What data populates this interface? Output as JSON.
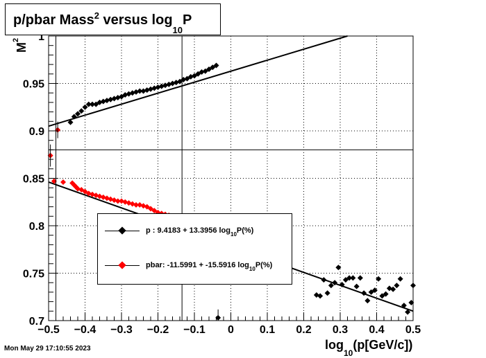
{
  "title": {
    "main": "p/pbar Mass",
    "sup": "2",
    "rest": " versus log",
    "sub": "10",
    "tail": "P"
  },
  "timestamp": "Mon May 29 17:10:55 2023",
  "colors": {
    "p": "#000000",
    "pbar": "#ff0000",
    "grid": "#000000",
    "background": "#ffffff"
  },
  "chart_data": {
    "type": "scatter",
    "xlabel": {
      "pre": "log",
      "sub": "10",
      "post": "(p[GeV/c])"
    },
    "ylabel": {
      "pre": "M",
      "sup": "2"
    },
    "xlim": [
      -0.5,
      0.5
    ],
    "ylim": [
      0.7,
      1.0
    ],
    "grid": true,
    "x_ticks": [
      "−0.5",
      "−0.4",
      "−0.3",
      "−0.2",
      "−0.1",
      "0",
      "0.1",
      "0.2",
      "0.3",
      "0.4",
      "0.5"
    ],
    "y_ticks": [
      "0.7",
      "0.75",
      "0.8",
      "0.85",
      "0.9",
      "0.95",
      "1"
    ],
    "y_tick_values": [
      0.7,
      0.75,
      0.8,
      0.85,
      0.9,
      0.95,
      1.0
    ],
    "x_tick_values": [
      -0.5,
      -0.4,
      -0.3,
      -0.2,
      -0.1,
      0,
      0.1,
      0.2,
      0.3,
      0.4,
      0.5
    ],
    "reference_lines": {
      "vertical_x": [
        -0.48,
        -0.134
      ],
      "horizontal_y": [
        0.88
      ]
    },
    "legend_placement": "center-left",
    "series": [
      {
        "name": "p",
        "legend_name": "p   ",
        "fit_label_pre": ": 9.4183 + 13.3956 log",
        "fit_label_sub": "10",
        "fit_label_post": "P(%)",
        "color": "#000000",
        "marker": "diamond",
        "fit": {
          "x": [
            -0.5,
            0.32
          ],
          "y": [
            0.905,
            1.0
          ]
        },
        "points": [
          [
            -0.44,
            0.909
          ],
          [
            -0.43,
            0.915
          ],
          [
            -0.42,
            0.918
          ],
          [
            -0.41,
            0.921
          ],
          [
            -0.4,
            0.925
          ],
          [
            -0.39,
            0.928
          ],
          [
            -0.38,
            0.928
          ],
          [
            -0.37,
            0.928
          ],
          [
            -0.36,
            0.93
          ],
          [
            -0.35,
            0.931
          ],
          [
            -0.34,
            0.932
          ],
          [
            -0.33,
            0.933
          ],
          [
            -0.32,
            0.934
          ],
          [
            -0.31,
            0.935
          ],
          [
            -0.3,
            0.936
          ],
          [
            -0.29,
            0.938
          ],
          [
            -0.28,
            0.939
          ],
          [
            -0.27,
            0.94
          ],
          [
            -0.26,
            0.941
          ],
          [
            -0.25,
            0.942
          ],
          [
            -0.24,
            0.942
          ],
          [
            -0.23,
            0.943
          ],
          [
            -0.22,
            0.944
          ],
          [
            -0.21,
            0.945
          ],
          [
            -0.2,
            0.946
          ],
          [
            -0.19,
            0.947
          ],
          [
            -0.18,
            0.948
          ],
          [
            -0.17,
            0.949
          ],
          [
            -0.16,
            0.95
          ],
          [
            -0.15,
            0.951
          ],
          [
            -0.14,
            0.952
          ],
          [
            -0.13,
            0.954
          ],
          [
            -0.12,
            0.955
          ],
          [
            -0.11,
            0.957
          ],
          [
            -0.1,
            0.958
          ],
          [
            -0.09,
            0.96
          ],
          [
            -0.08,
            0.962
          ],
          [
            -0.07,
            0.963
          ],
          [
            -0.06,
            0.965
          ],
          [
            -0.05,
            0.967
          ],
          [
            -0.04,
            0.969
          ],
          [
            -0.035,
            0.703
          ],
          [
            0.235,
            0.727
          ],
          [
            0.245,
            0.726
          ],
          [
            0.255,
            0.743
          ],
          [
            0.265,
            0.729
          ],
          [
            0.275,
            0.737
          ],
          [
            0.285,
            0.74
          ],
          [
            0.295,
            0.756
          ],
          [
            0.305,
            0.738
          ],
          [
            0.315,
            0.743
          ],
          [
            0.325,
            0.745
          ],
          [
            0.335,
            0.745
          ],
          [
            0.345,
            0.736
          ],
          [
            0.355,
            0.745
          ],
          [
            0.365,
            0.729
          ],
          [
            0.375,
            0.721
          ],
          [
            0.385,
            0.73
          ],
          [
            0.395,
            0.732
          ],
          [
            0.405,
            0.744
          ],
          [
            0.415,
            0.726
          ],
          [
            0.425,
            0.728
          ],
          [
            0.435,
            0.734
          ],
          [
            0.445,
            0.733
          ],
          [
            0.455,
            0.737
          ],
          [
            0.465,
            0.744
          ],
          [
            0.475,
            0.716
          ],
          [
            0.485,
            0.709
          ],
          [
            0.495,
            0.719
          ],
          [
            0.5,
            0.737
          ]
        ]
      },
      {
        "name": "pbar",
        "legend_name": "pbar",
        "fit_label_pre": ": -11.5991 + -15.5916 log",
        "fit_label_sub": "10",
        "fit_label_post": "P(%)",
        "color": "#ff0000",
        "marker": "diamond",
        "fit": {
          "x": [
            -0.5,
            0.5
          ],
          "y": [
            0.846,
            0.71
          ]
        },
        "points": [
          [
            -0.495,
            0.874
          ],
          [
            -0.475,
            0.901
          ],
          [
            -0.485,
            0.847
          ],
          [
            -0.46,
            0.846
          ],
          [
            -0.435,
            0.845
          ],
          [
            -0.43,
            0.843
          ],
          [
            -0.425,
            0.841
          ],
          [
            -0.42,
            0.839
          ],
          [
            -0.41,
            0.838
          ],
          [
            -0.4,
            0.836
          ],
          [
            -0.39,
            0.834
          ],
          [
            -0.38,
            0.833
          ],
          [
            -0.37,
            0.832
          ],
          [
            -0.36,
            0.831
          ],
          [
            -0.35,
            0.83
          ],
          [
            -0.34,
            0.829
          ],
          [
            -0.33,
            0.828
          ],
          [
            -0.32,
            0.827
          ],
          [
            -0.31,
            0.826
          ],
          [
            -0.3,
            0.826
          ],
          [
            -0.29,
            0.825
          ],
          [
            -0.28,
            0.824
          ],
          [
            -0.27,
            0.823
          ],
          [
            -0.26,
            0.822
          ],
          [
            -0.25,
            0.822
          ],
          [
            -0.24,
            0.821
          ],
          [
            -0.23,
            0.82
          ],
          [
            -0.22,
            0.818
          ],
          [
            -0.21,
            0.816
          ],
          [
            -0.2,
            0.814
          ],
          [
            -0.19,
            0.813
          ],
          [
            -0.18,
            0.812
          ],
          [
            -0.17,
            0.811
          ],
          [
            -0.16,
            0.81
          ]
        ]
      }
    ]
  }
}
